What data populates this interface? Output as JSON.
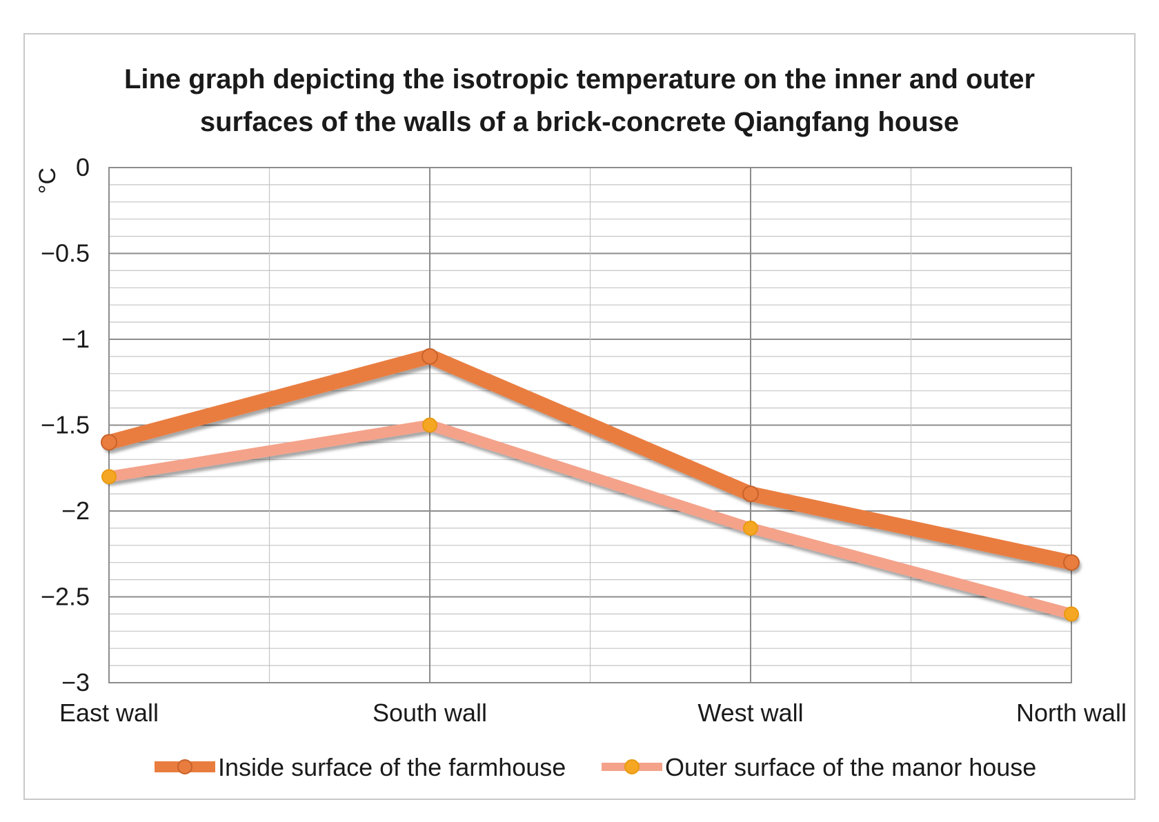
{
  "chart_data": {
    "type": "line",
    "title_lines": [
      "Line graph depicting the isotropic temperature on the inner and outer",
      "surfaces of the walls of a brick-concrete Qiangfang house"
    ],
    "ylabel": "°C",
    "xlabel": "",
    "categories": [
      "East wall",
      "South wall",
      "West wall",
      "North wall"
    ],
    "ylim": [
      -3,
      0
    ],
    "y_major_step": 0.5,
    "y_minor_step": 0.1,
    "y_tick_labels": [
      "0",
      "−0.5",
      "−1",
      "−1.5",
      "−2",
      "−2.5",
      "−3"
    ],
    "grid": true,
    "legend_position": "bottom",
    "series": [
      {
        "name": "Inside surface of the farmhouse",
        "values": [
          -1.6,
          -1.1,
          -1.9,
          -2.3
        ],
        "color": "#e97d3f",
        "marker_color": "#e97d3f"
      },
      {
        "name": "Outer surface of the manor house",
        "values": [
          -1.8,
          -1.5,
          -2.1,
          -2.6
        ],
        "color": "#f4a28a",
        "marker_color": "#f5a623"
      }
    ]
  }
}
